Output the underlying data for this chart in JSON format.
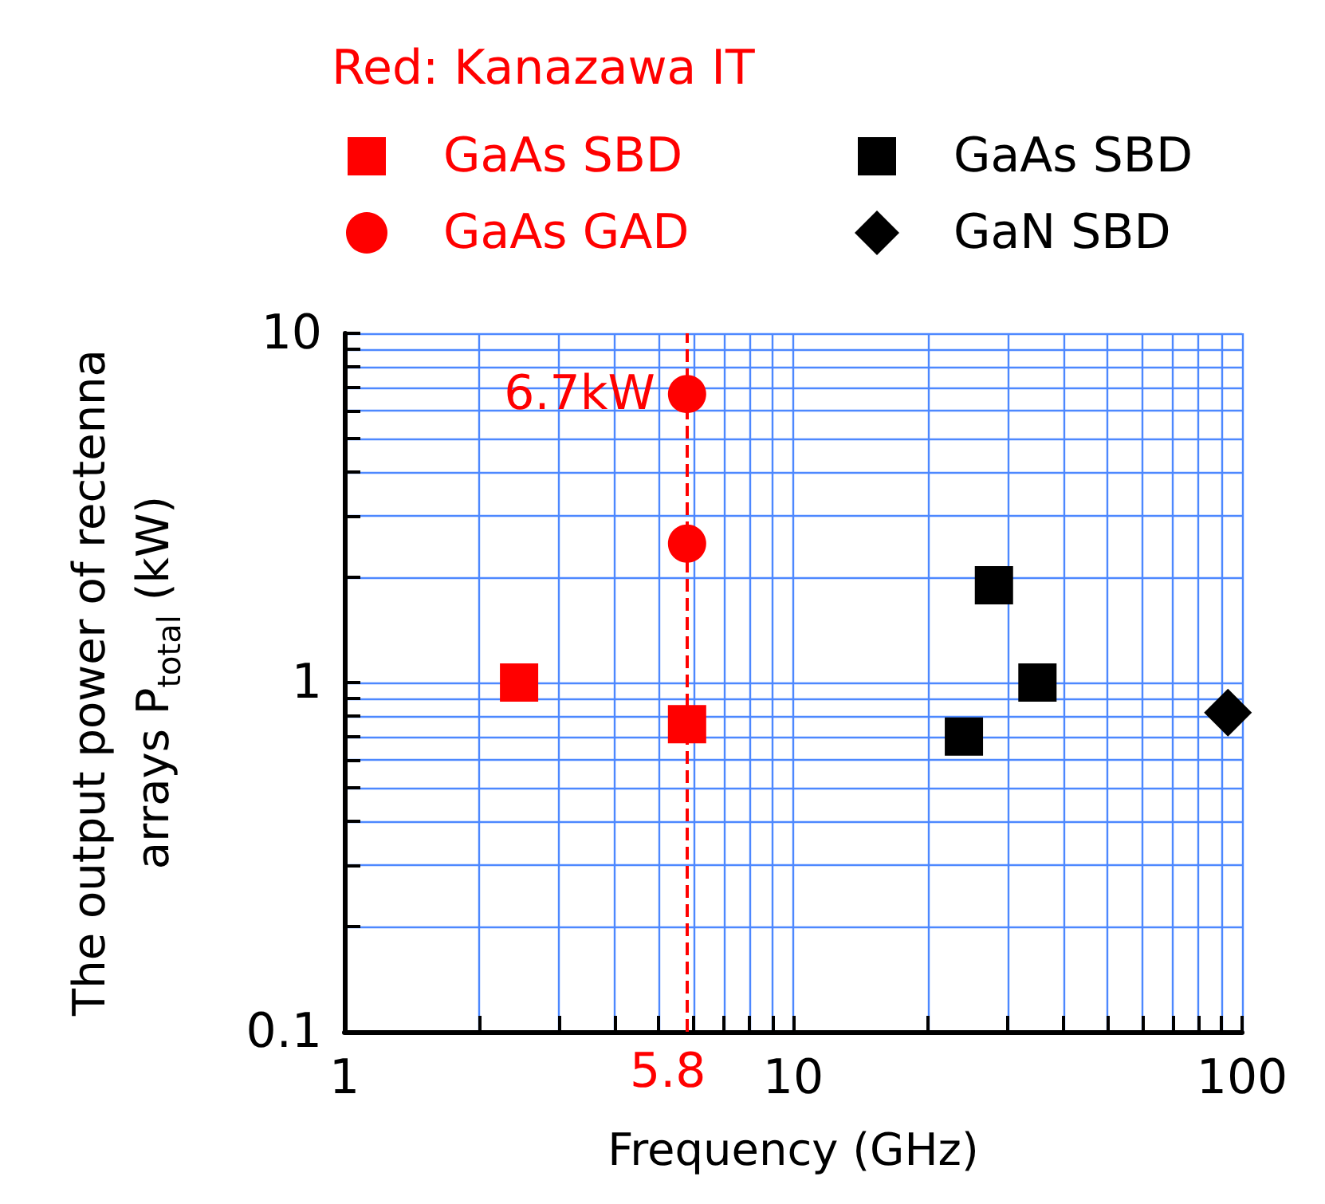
{
  "chart_data": {
    "type": "scatter",
    "xlabel": "Frequency (GHz)",
    "ylabel": "The output power of rectenna arrays P$_{total}$ (kW)",
    "annotations": [
      "Red: Kanazawa IT",
      {
        "text": "6.7kW",
        "x": 5.8,
        "y": 6.7
      }
    ],
    "series": [
      {
        "name": "GaAs SBD",
        "color": "#ff0000",
        "marker": "square",
        "x": [
          2.45,
          5.8
        ],
        "values": [
          1.0,
          0.76
        ]
      },
      {
        "name": "GaAs GAD",
        "color": "#ff0000",
        "marker": "circle",
        "x": [
          5.8,
          5.8
        ],
        "values": [
          6.7,
          2.5
        ]
      },
      {
        "name": "GaAs SBD",
        "color": "#000000",
        "marker": "square",
        "x": [
          24,
          28,
          35
        ],
        "values": [
          0.7,
          1.9,
          1.0
        ]
      },
      {
        "name": "GaN SBD",
        "color": "#000000",
        "marker": "diamond",
        "x": [
          93
        ],
        "values": [
          0.82
        ]
      }
    ],
    "ref_lines": [
      {
        "axis": "x",
        "value": 5.8,
        "label": "5.8",
        "color": "#ff0000",
        "line_style": "dashed"
      }
    ],
    "log": "xy",
    "xlim": [
      1,
      100
    ],
    "ylim": [
      0.1,
      10
    ],
    "xticks": [
      1,
      {
        "value": 2,
        "label": null
      },
      {
        "value": 3,
        "label": null
      },
      {
        "value": 4,
        "label": null
      },
      {
        "value": 5,
        "label": null
      },
      {
        "value": 6,
        "label": null
      },
      {
        "value": 7,
        "label": null
      },
      {
        "value": 8,
        "label": null
      },
      {
        "value": 9,
        "label": null
      },
      10,
      {
        "value": 20,
        "label": null
      },
      {
        "value": 30,
        "label": null
      },
      {
        "value": 40,
        "label": null
      },
      {
        "value": 50,
        "label": null
      },
      {
        "value": 60,
        "label": null
      },
      {
        "value": 70,
        "label": null
      },
      {
        "value": 80,
        "label": null
      },
      {
        "value": 90,
        "label": null
      },
      100
    ],
    "yticks": [
      0.1,
      {
        "value": 0.2,
        "label": null
      },
      {
        "value": 0.3,
        "label": null
      },
      {
        "value": 0.4,
        "label": null
      },
      {
        "value": 0.5,
        "label": null
      },
      {
        "value": 0.6,
        "label": null
      },
      {
        "value": 0.7,
        "label": null
      },
      {
        "value": 0.8,
        "label": null
      },
      {
        "value": 0.9,
        "label": null
      },
      1,
      {
        "value": 2,
        "label": null
      },
      {
        "value": 3,
        "label": null
      },
      {
        "value": 4,
        "label": null
      },
      {
        "value": 5,
        "label": null
      },
      {
        "value": 6,
        "label": null
      },
      {
        "value": 7,
        "label": null
      },
      {
        "value": 8,
        "label": null
      },
      {
        "value": 9,
        "label": null
      },
      10
    ],
    "grid": true,
    "legend": "top"
  }
}
